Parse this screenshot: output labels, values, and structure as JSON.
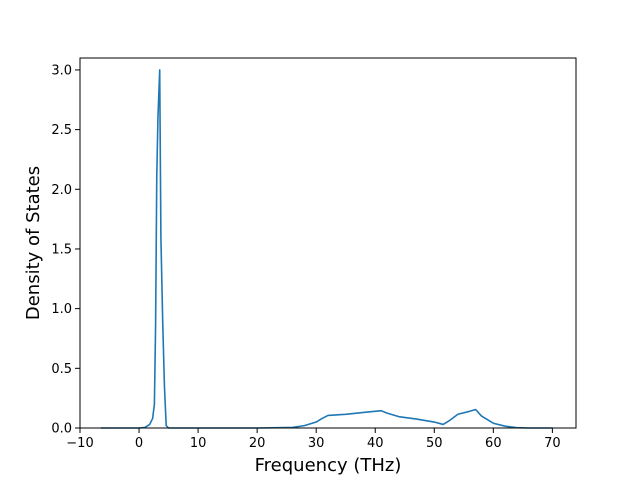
{
  "chart_data": {
    "type": "line",
    "title": "",
    "xlabel": "Frequency (THz)",
    "ylabel": "Density of States",
    "xlim": [
      -10,
      74
    ],
    "ylim": [
      0,
      3.1
    ],
    "xticks": [
      -10,
      0,
      10,
      20,
      30,
      40,
      50,
      60,
      70
    ],
    "xtick_labels": [
      "−10",
      "0",
      "10",
      "20",
      "30",
      "40",
      "50",
      "60",
      "70"
    ],
    "yticks": [
      0,
      0.5,
      1.0,
      1.5,
      2.0,
      2.5,
      3.0
    ],
    "ytick_labels": [
      "0.0",
      "0.5",
      "1.0",
      "1.5",
      "2.0",
      "2.5",
      "3.0"
    ],
    "grid": false,
    "line_color": "#1f77b4",
    "series": [
      {
        "x": [
          -6.5,
          -2,
          0,
          1,
          1.8,
          2.3,
          2.6,
          2.8,
          3.0,
          3.2,
          3.5,
          3.7,
          4.0,
          4.3,
          4.6,
          5,
          10,
          20,
          26,
          28,
          30,
          31,
          32,
          35,
          38,
          41,
          42,
          44,
          47,
          50,
          51.5,
          52.5,
          54,
          56,
          57,
          58,
          60,
          62,
          64,
          66,
          70
        ],
        "y": [
          0,
          0,
          0,
          0.005,
          0.03,
          0.08,
          0.2,
          0.85,
          2.1,
          2.6,
          3.0,
          1.6,
          0.9,
          0.35,
          0.02,
          0,
          0,
          0,
          0.005,
          0.02,
          0.05,
          0.08,
          0.105,
          0.115,
          0.13,
          0.145,
          0.125,
          0.095,
          0.075,
          0.05,
          0.03,
          0.06,
          0.115,
          0.14,
          0.155,
          0.1,
          0.04,
          0.015,
          0.003,
          0,
          0
        ]
      }
    ]
  }
}
